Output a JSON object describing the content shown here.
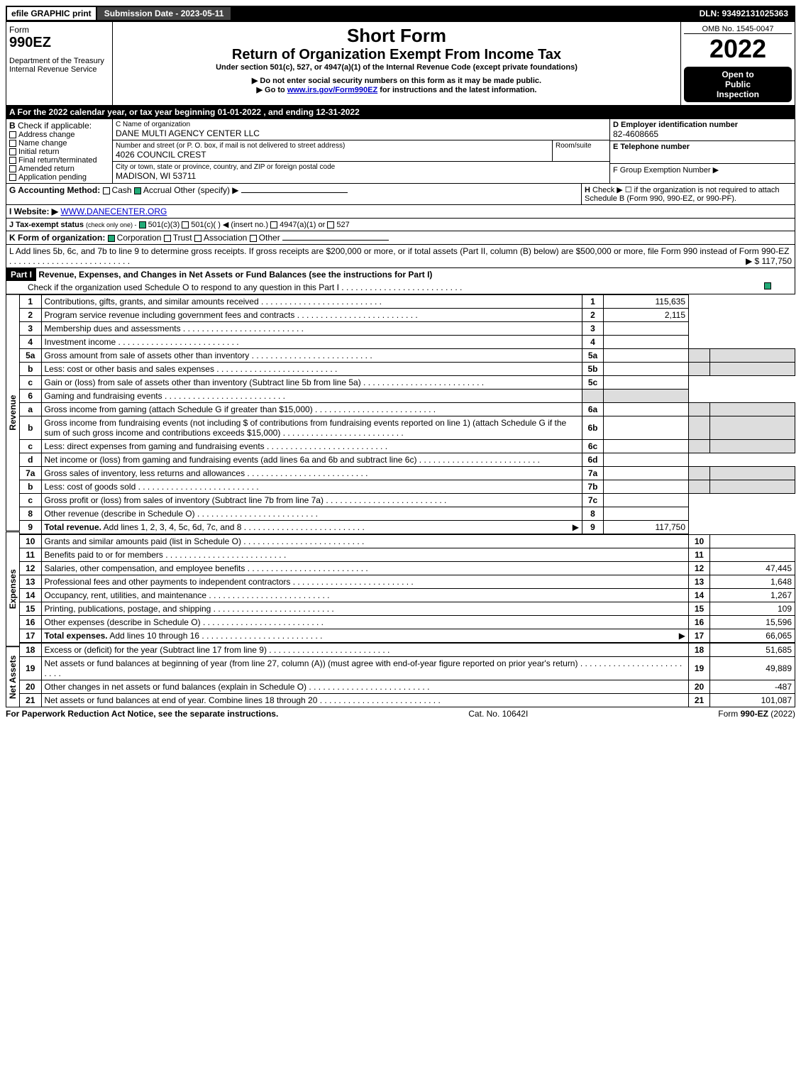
{
  "topbar": {
    "efile": "efile GRAPHIC print",
    "submission": "Submission Date - 2023-05-11",
    "dln": "DLN: 93492131025363"
  },
  "header": {
    "form_label": "Form",
    "form_number": "990EZ",
    "dept": "Department of the Treasury",
    "irs": "Internal Revenue Service",
    "short_form": "Short Form",
    "title": "Return of Organization Exempt From Income Tax",
    "subtitle": "Under section 501(c), 527, or 4947(a)(1) of the Internal Revenue Code (except private foundations)",
    "warning": "▶ Do not enter social security numbers on this form as it may be made public.",
    "goto_prefix": "▶ Go to ",
    "goto_link": "www.irs.gov/Form990EZ",
    "goto_suffix": " for instructions and the latest information.",
    "omb": "OMB No. 1545-0047",
    "year": "2022",
    "inspection1": "Open to",
    "inspection2": "Public",
    "inspection3": "Inspection"
  },
  "sectionA": {
    "a_label": "A  For the 2022 calendar year, or tax year beginning 01-01-2022 , and ending 12-31-2022",
    "b_label": "B",
    "check_if": "Check if applicable:",
    "b_items": [
      "Address change",
      "Name change",
      "Initial return",
      "Final return/terminated",
      "Amended return",
      "Application pending"
    ],
    "c_label": "C Name of organization",
    "org_name": "DANE MULTI AGENCY CENTER LLC",
    "street_label": "Number and street (or P. O. box, if mail is not delivered to street address)",
    "street": "4026 COUNCIL CREST",
    "room_label": "Room/suite",
    "city_label": "City or town, state or province, country, and ZIP or foreign postal code",
    "city": "MADISON, WI  53711",
    "d_label": "D Employer identification number",
    "ein": "82-4608665",
    "e_label": "E Telephone number",
    "f_label": "F Group Exemption Number   ▶"
  },
  "sectionG": {
    "g_label": "G Accounting Method:",
    "cash": "Cash",
    "accrual": "Accrual",
    "other": "Other (specify) ▶",
    "h_label": "H",
    "h_text": "Check ▶  ☐  if the organization is not required to attach Schedule B (Form 990, 990-EZ, or 990-PF).",
    "i_label": "I Website: ▶",
    "website": "WWW.DANECENTER.ORG",
    "j_label": "J Tax-exempt status",
    "j_note": "(check only one) -",
    "j_501c3": "501(c)(3)",
    "j_501c": "501(c)(  ) ◀ (insert no.)",
    "j_4947": "4947(a)(1) or",
    "j_527": "527",
    "k_label": "K Form of organization:",
    "k_corp": "Corporation",
    "k_trust": "Trust",
    "k_assoc": "Association",
    "k_other": "Other",
    "l_text": "L Add lines 5b, 6c, and 7b to line 9 to determine gross receipts. If gross receipts are $200,000 or more, or if total assets (Part II, column (B) below) are $500,000 or more, file Form 990 instead of Form 990-EZ",
    "l_amount": "▶ $ 117,750"
  },
  "part1": {
    "label": "Part I",
    "title": "Revenue, Expenses, and Changes in Net Assets or Fund Balances (see the instructions for Part I)",
    "check_note": "Check if the organization used Schedule O to respond to any question in this Part I",
    "sections": {
      "revenue": "Revenue",
      "expenses": "Expenses",
      "netassets": "Net Assets"
    },
    "lines": [
      {
        "n": "1",
        "d": "Contributions, gifts, grants, and similar amounts received",
        "ln": "1",
        "a": "115,635"
      },
      {
        "n": "2",
        "d": "Program service revenue including government fees and contracts",
        "ln": "2",
        "a": "2,115"
      },
      {
        "n": "3",
        "d": "Membership dues and assessments",
        "ln": "3",
        "a": ""
      },
      {
        "n": "4",
        "d": "Investment income",
        "ln": "4",
        "a": ""
      },
      {
        "n": "5a",
        "d": "Gross amount from sale of assets other than inventory",
        "mid": "5a",
        "ln": "",
        "a": ""
      },
      {
        "n": "b",
        "d": "Less: cost or other basis and sales expenses",
        "mid": "5b",
        "ln": "",
        "a": ""
      },
      {
        "n": "c",
        "d": "Gain or (loss) from sale of assets other than inventory (Subtract line 5b from line 5a)",
        "ln": "5c",
        "a": ""
      },
      {
        "n": "6",
        "d": "Gaming and fundraising events",
        "ln": "",
        "a": ""
      },
      {
        "n": "a",
        "d": "Gross income from gaming (attach Schedule G if greater than $15,000)",
        "mid": "6a",
        "ln": "",
        "a": ""
      },
      {
        "n": "b",
        "d": "Gross income from fundraising events (not including $                    of contributions from fundraising events reported on line 1) (attach Schedule G if the sum of such gross income and contributions exceeds $15,000)",
        "mid": "6b",
        "ln": "",
        "a": ""
      },
      {
        "n": "c",
        "d": "Less: direct expenses from gaming and fundraising events",
        "mid": "6c",
        "ln": "",
        "a": ""
      },
      {
        "n": "d",
        "d": "Net income or (loss) from gaming and fundraising events (add lines 6a and 6b and subtract line 6c)",
        "ln": "6d",
        "a": ""
      },
      {
        "n": "7a",
        "d": "Gross sales of inventory, less returns and allowances",
        "mid": "7a",
        "ln": "",
        "a": ""
      },
      {
        "n": "b",
        "d": "Less: cost of goods sold",
        "mid": "7b",
        "ln": "",
        "a": ""
      },
      {
        "n": "c",
        "d": "Gross profit or (loss) from sales of inventory (Subtract line 7b from line 7a)",
        "ln": "7c",
        "a": ""
      },
      {
        "n": "8",
        "d": "Other revenue (describe in Schedule O)",
        "ln": "8",
        "a": ""
      },
      {
        "n": "9",
        "d": "Total revenue. Add lines 1, 2, 3, 4, 5c, 6d, 7c, and 8",
        "ln": "9",
        "a": "117,750",
        "bold": true,
        "arrow": true
      }
    ],
    "expenses": [
      {
        "n": "10",
        "d": "Grants and similar amounts paid (list in Schedule O)",
        "ln": "10",
        "a": ""
      },
      {
        "n": "11",
        "d": "Benefits paid to or for members",
        "ln": "11",
        "a": ""
      },
      {
        "n": "12",
        "d": "Salaries, other compensation, and employee benefits",
        "ln": "12",
        "a": "47,445"
      },
      {
        "n": "13",
        "d": "Professional fees and other payments to independent contractors",
        "ln": "13",
        "a": "1,648"
      },
      {
        "n": "14",
        "d": "Occupancy, rent, utilities, and maintenance",
        "ln": "14",
        "a": "1,267"
      },
      {
        "n": "15",
        "d": "Printing, publications, postage, and shipping",
        "ln": "15",
        "a": "109"
      },
      {
        "n": "16",
        "d": "Other expenses (describe in Schedule O)",
        "ln": "16",
        "a": "15,596"
      },
      {
        "n": "17",
        "d": "Total expenses. Add lines 10 through 16",
        "ln": "17",
        "a": "66,065",
        "bold": true,
        "arrow": true
      }
    ],
    "netassets": [
      {
        "n": "18",
        "d": "Excess or (deficit) for the year (Subtract line 17 from line 9)",
        "ln": "18",
        "a": "51,685"
      },
      {
        "n": "19",
        "d": "Net assets or fund balances at beginning of year (from line 27, column (A)) (must agree with end-of-year figure reported on prior year's return)",
        "ln": "19",
        "a": "49,889"
      },
      {
        "n": "20",
        "d": "Other changes in net assets or fund balances (explain in Schedule O)",
        "ln": "20",
        "a": "-487"
      },
      {
        "n": "21",
        "d": "Net assets or fund balances at end of year. Combine lines 18 through 20",
        "ln": "21",
        "a": "101,087"
      }
    ]
  },
  "footer": {
    "left": "For Paperwork Reduction Act Notice, see the separate instructions.",
    "mid": "Cat. No. 10642I",
    "right": "Form 990-EZ (2022)"
  }
}
